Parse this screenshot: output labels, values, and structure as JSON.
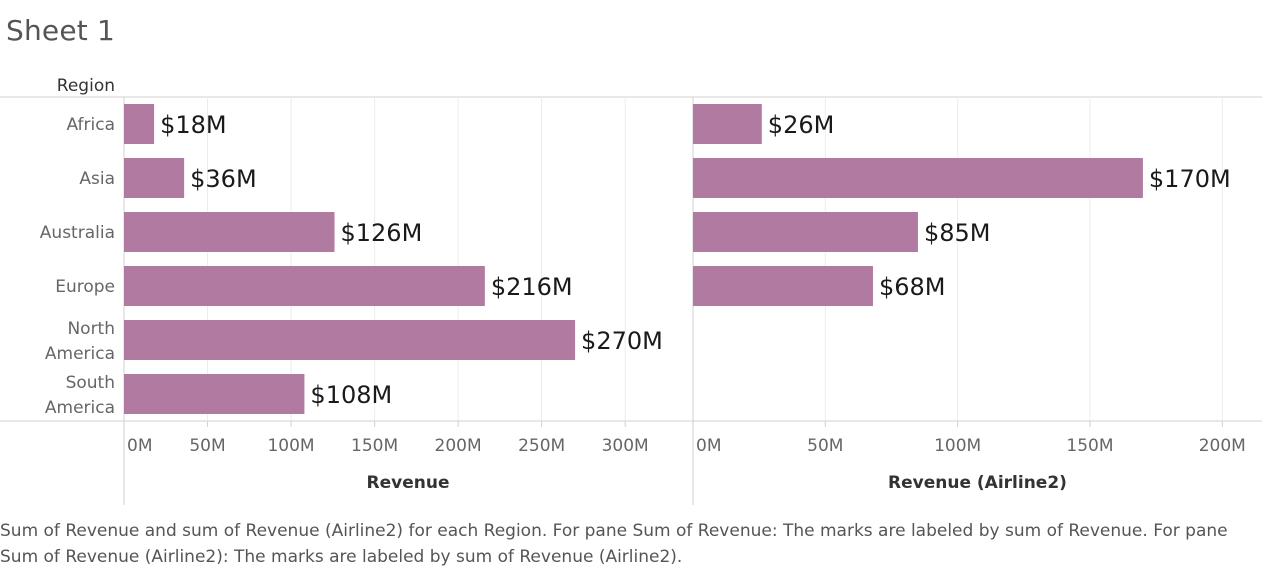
{
  "sheet": {
    "title": "Sheet 1",
    "caption": "Sum of Revenue and sum of Revenue (Airline2) for each Region.  For pane Sum of Revenue:  The marks are labeled by sum of Revenue.  For pane Sum of Revenue (Airline2):  The marks are labeled by sum of Revenue (Airline2)."
  },
  "colors": {
    "bar": "#b07aa1",
    "grid": "#ececec",
    "axis_line": "#d0d0d0",
    "label_text": "#1a1a1a",
    "muted_text": "#666666"
  },
  "chart_data": {
    "type": "bar",
    "orientation": "horizontal",
    "row_header": "Region",
    "categories": [
      [
        "Africa"
      ],
      [
        "Asia"
      ],
      [
        "Australia"
      ],
      [
        "Europe"
      ],
      [
        "North",
        "America"
      ],
      [
        "South",
        "America"
      ]
    ],
    "panes": [
      {
        "xlabel": "Revenue",
        "xlim": [
          0,
          340
        ],
        "ticks": [
          0,
          50,
          100,
          150,
          200,
          250,
          300
        ],
        "tick_labels": [
          "0M",
          "50M",
          "100M",
          "150M",
          "200M",
          "250M",
          "300M"
        ],
        "values": [
          18,
          36,
          126,
          216,
          270,
          108
        ],
        "labels": [
          "$18M",
          "$36M",
          "$126M",
          "$216M",
          "$270M",
          "$108M"
        ]
      },
      {
        "xlabel": "Revenue (Airline2)",
        "xlim": [
          0,
          215
        ],
        "ticks": [
          0,
          50,
          100,
          150,
          200
        ],
        "tick_labels": [
          "0M",
          "50M",
          "100M",
          "150M",
          "200M"
        ],
        "values": [
          26,
          170,
          85,
          68,
          null,
          null
        ],
        "labels": [
          "$26M",
          "$170M",
          "$85M",
          "$68M",
          "",
          ""
        ]
      }
    ]
  }
}
